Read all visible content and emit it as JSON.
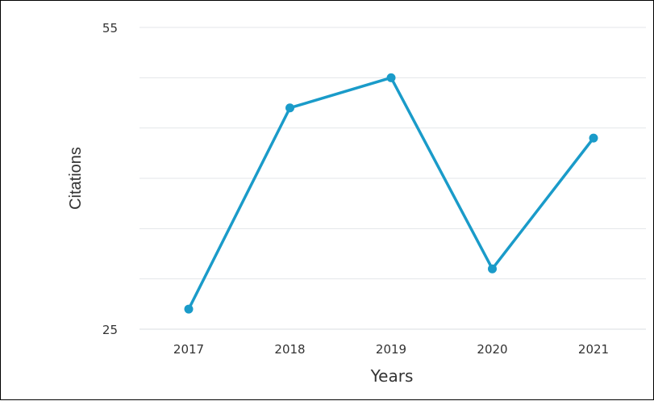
{
  "chart_data": {
    "type": "line",
    "title": "",
    "xlabel": "Years",
    "ylabel": "Citations",
    "categories": [
      "2017",
      "2018",
      "2019",
      "2020",
      "2021"
    ],
    "series": [
      {
        "values": [
          27,
          47,
          50,
          31,
          44
        ],
        "color": "#1a9bc9"
      }
    ],
    "ylim": [
      25,
      55
    ],
    "y_tick_labels": [
      "55",
      "25"
    ],
    "grid": true,
    "gridline_count": 6,
    "legend": "none"
  }
}
